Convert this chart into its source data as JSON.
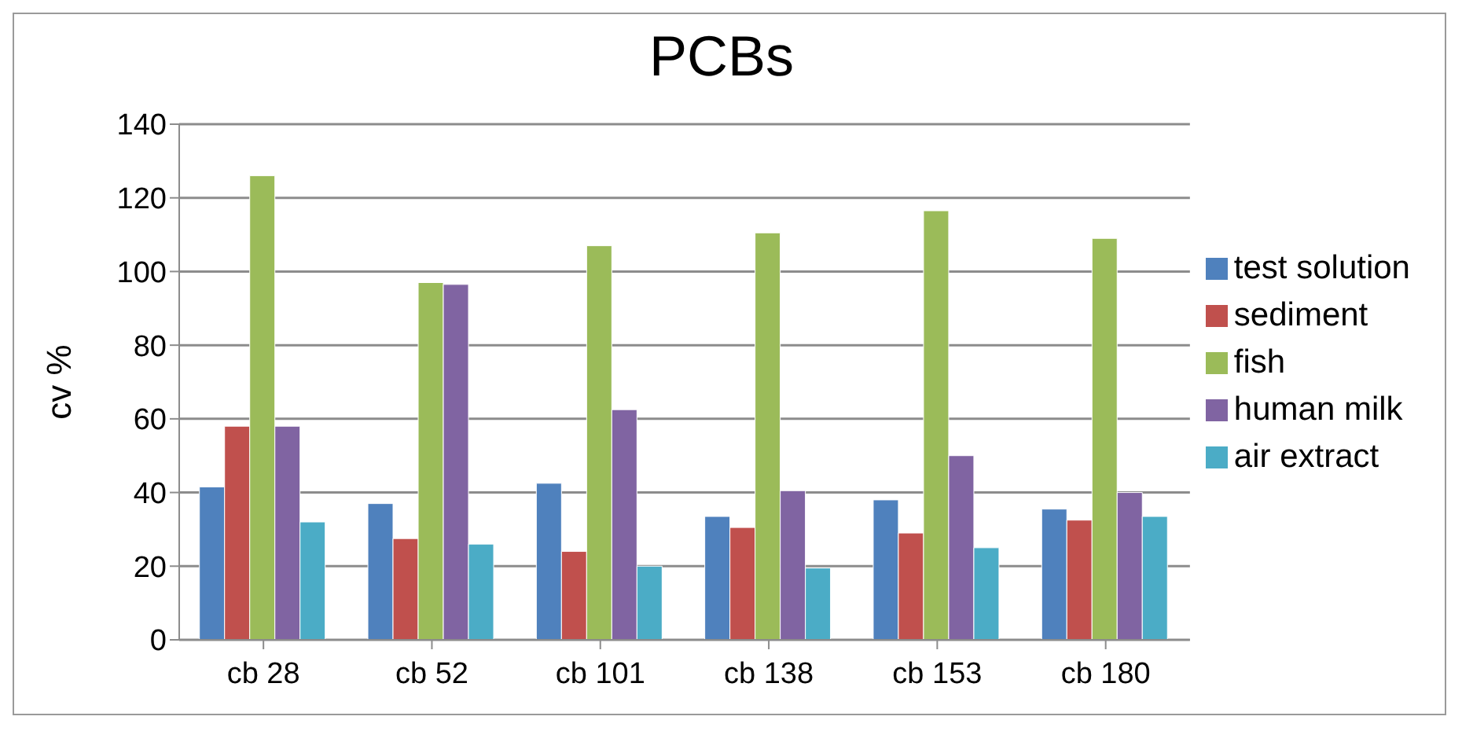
{
  "chart_data": {
    "type": "bar",
    "title": "PCBs",
    "ylabel": "cv %",
    "categories": [
      "cb 28",
      "cb 52",
      "cb 101",
      "cb 138",
      "cb 153",
      "cb 180"
    ],
    "series": [
      {
        "name": "test solution",
        "color": "#4f81bd",
        "values": [
          41.5,
          37,
          42.5,
          33.5,
          38,
          35.5
        ]
      },
      {
        "name": "sediment",
        "color": "#c0504d",
        "values": [
          58,
          27.5,
          24,
          30.5,
          29,
          32.5
        ]
      },
      {
        "name": "fish",
        "color": "#9bbb59",
        "values": [
          126,
          97,
          107,
          110.5,
          116.5,
          109
        ]
      },
      {
        "name": "human milk",
        "color": "#8064a2",
        "values": [
          58,
          96.5,
          62.5,
          40.5,
          50,
          40
        ]
      },
      {
        "name": "air extract",
        "color": "#4bacc6",
        "values": [
          32,
          26,
          20,
          19.5,
          25,
          33.5
        ]
      }
    ],
    "ylim": [
      0,
      140
    ],
    "yticks": [
      0,
      20,
      40,
      60,
      80,
      100,
      120,
      140
    ],
    "grid": "y",
    "legend": "right"
  }
}
